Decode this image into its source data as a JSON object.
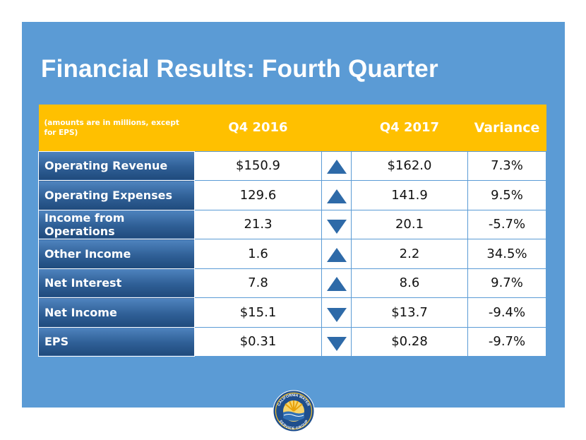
{
  "title": "Financial Results: Fourth Quarter",
  "table": {
    "note": "(amounts are in millions, except for EPS)",
    "headers": {
      "q4_2016": "Q4 2016",
      "q4_2017": "Q4 2017",
      "variance": "Variance"
    },
    "rows": [
      {
        "label": "Operating Revenue",
        "q4_2016": "$150.9",
        "direction": "up",
        "q4_2017": "$162.0",
        "variance": "7.3%"
      },
      {
        "label": "Operating Expenses",
        "q4_2016": "129.6",
        "direction": "up",
        "q4_2017": "141.9",
        "variance": "9.5%"
      },
      {
        "label": "Income from Operations",
        "q4_2016": "21.3",
        "direction": "down",
        "q4_2017": "20.1",
        "variance": "-5.7%"
      },
      {
        "label": "Other Income",
        "q4_2016": "1.6",
        "direction": "up",
        "q4_2017": "2.2",
        "variance": "34.5%"
      },
      {
        "label": "Net Interest",
        "q4_2016": "7.8",
        "direction": "up",
        "q4_2017": "8.6",
        "variance": "9.7%"
      },
      {
        "label": "Net Income",
        "q4_2016": "$15.1",
        "direction": "down",
        "q4_2017": "$13.7",
        "variance": "-9.4%"
      },
      {
        "label": "EPS",
        "q4_2016": "$0.31",
        "direction": "down",
        "q4_2017": "$0.28",
        "variance": "-9.7%"
      }
    ]
  },
  "logo": {
    "text_top": "CALIFORNIA WATER",
    "text_bottom": "SERVICE GROUP"
  },
  "colors": {
    "background": "#5b9bd5",
    "header": "#ffc000",
    "label_cells": "#2f5f96",
    "arrows": "#2e6aa8"
  }
}
